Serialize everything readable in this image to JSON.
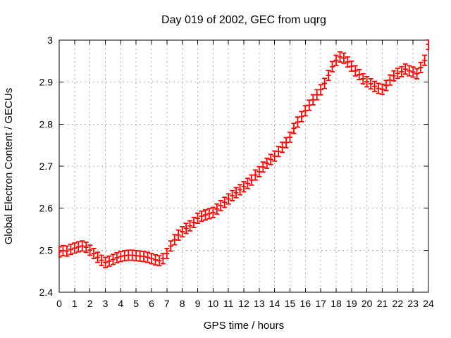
{
  "window": {
    "background": "#ffffff"
  },
  "chart_data": {
    "type": "scatter",
    "style": "points-with-yerrorbars",
    "title": "Day 019 of 2002, GEC from uqrg",
    "xlabel": "GPS time / hours",
    "ylabel": "Global Electron Content / GECUs",
    "xlim": [
      0,
      24
    ],
    "ylim": [
      2.4,
      3
    ],
    "xticks": [
      0,
      1,
      2,
      3,
      4,
      5,
      6,
      7,
      8,
      9,
      10,
      11,
      12,
      13,
      14,
      15,
      16,
      17,
      18,
      19,
      20,
      21,
      22,
      23,
      24
    ],
    "xtick_labels": [
      "0",
      "1",
      "2",
      "3",
      "4",
      "5",
      "6",
      "7",
      "8",
      "9",
      "10",
      "11",
      "12",
      "13",
      "14",
      "15",
      "16",
      "17",
      "18",
      "19",
      "20",
      "21",
      "22",
      "23",
      "24"
    ],
    "yticks": [
      2.4,
      2.5,
      2.6,
      2.7,
      2.8,
      2.9,
      3
    ],
    "ytick_labels": [
      "2.4",
      "2.5",
      "2.6",
      "2.7",
      "2.8",
      "2.9",
      "3"
    ],
    "grid": true,
    "legend": "none",
    "colors": {
      "series": "#ff0000",
      "grid": "#b0b0b0",
      "axis": "#000000",
      "background": "#ffffff"
    },
    "yerror": 0.012,
    "points": [
      [
        0.0,
        2.496
      ],
      [
        0.25,
        2.499
      ],
      [
        0.5,
        2.498
      ],
      [
        0.75,
        2.502
      ],
      [
        1.0,
        2.505
      ],
      [
        1.25,
        2.508
      ],
      [
        1.5,
        2.51
      ],
      [
        1.75,
        2.507
      ],
      [
        2.0,
        2.5
      ],
      [
        2.25,
        2.492
      ],
      [
        2.5,
        2.483
      ],
      [
        2.75,
        2.476
      ],
      [
        3.0,
        2.471
      ],
      [
        3.25,
        2.474
      ],
      [
        3.5,
        2.478
      ],
      [
        3.75,
        2.482
      ],
      [
        4.0,
        2.485
      ],
      [
        4.25,
        2.487
      ],
      [
        4.5,
        2.488
      ],
      [
        4.75,
        2.488
      ],
      [
        5.0,
        2.487
      ],
      [
        5.25,
        2.486
      ],
      [
        5.5,
        2.485
      ],
      [
        5.75,
        2.483
      ],
      [
        6.0,
        2.48
      ],
      [
        6.25,
        2.477
      ],
      [
        6.5,
        2.475
      ],
      [
        6.75,
        2.48
      ],
      [
        7.0,
        2.492
      ],
      [
        7.25,
        2.51
      ],
      [
        7.5,
        2.525
      ],
      [
        7.75,
        2.536
      ],
      [
        8.0,
        2.544
      ],
      [
        8.25,
        2.552
      ],
      [
        8.5,
        2.558
      ],
      [
        8.75,
        2.566
      ],
      [
        9.0,
        2.576
      ],
      [
        9.25,
        2.581
      ],
      [
        9.5,
        2.584
      ],
      [
        9.75,
        2.587
      ],
      [
        10.0,
        2.59
      ],
      [
        10.25,
        2.598
      ],
      [
        10.5,
        2.606
      ],
      [
        10.75,
        2.614
      ],
      [
        11.0,
        2.622
      ],
      [
        11.25,
        2.63
      ],
      [
        11.5,
        2.637
      ],
      [
        11.75,
        2.644
      ],
      [
        12.0,
        2.651
      ],
      [
        12.25,
        2.659
      ],
      [
        12.5,
        2.667
      ],
      [
        12.75,
        2.679
      ],
      [
        13.0,
        2.687
      ],
      [
        13.25,
        2.698
      ],
      [
        13.5,
        2.707
      ],
      [
        13.75,
        2.716
      ],
      [
        14.0,
        2.724
      ],
      [
        14.25,
        2.735
      ],
      [
        14.5,
        2.745
      ],
      [
        14.75,
        2.756
      ],
      [
        15.0,
        2.769
      ],
      [
        15.25,
        2.79
      ],
      [
        15.5,
        2.805
      ],
      [
        15.75,
        2.818
      ],
      [
        16.0,
        2.832
      ],
      [
        16.25,
        2.845
      ],
      [
        16.5,
        2.858
      ],
      [
        16.75,
        2.87
      ],
      [
        17.0,
        2.882
      ],
      [
        17.25,
        2.897
      ],
      [
        17.5,
        2.916
      ],
      [
        17.75,
        2.937
      ],
      [
        18.0,
        2.952
      ],
      [
        18.25,
        2.96
      ],
      [
        18.5,
        2.957
      ],
      [
        18.75,
        2.948
      ],
      [
        19.0,
        2.938
      ],
      [
        19.25,
        2.927
      ],
      [
        19.5,
        2.918
      ],
      [
        19.75,
        2.908
      ],
      [
        20.0,
        2.901
      ],
      [
        20.25,
        2.896
      ],
      [
        20.5,
        2.89
      ],
      [
        20.75,
        2.885
      ],
      [
        21.0,
        2.883
      ],
      [
        21.25,
        2.892
      ],
      [
        21.5,
        2.905
      ],
      [
        21.75,
        2.915
      ],
      [
        22.0,
        2.921
      ],
      [
        22.25,
        2.925
      ],
      [
        22.5,
        2.931
      ],
      [
        22.75,
        2.927
      ],
      [
        23.0,
        2.924
      ],
      [
        23.25,
        2.92
      ],
      [
        23.5,
        2.935
      ],
      [
        23.75,
        2.952
      ],
      [
        24.0,
        2.99
      ]
    ]
  }
}
